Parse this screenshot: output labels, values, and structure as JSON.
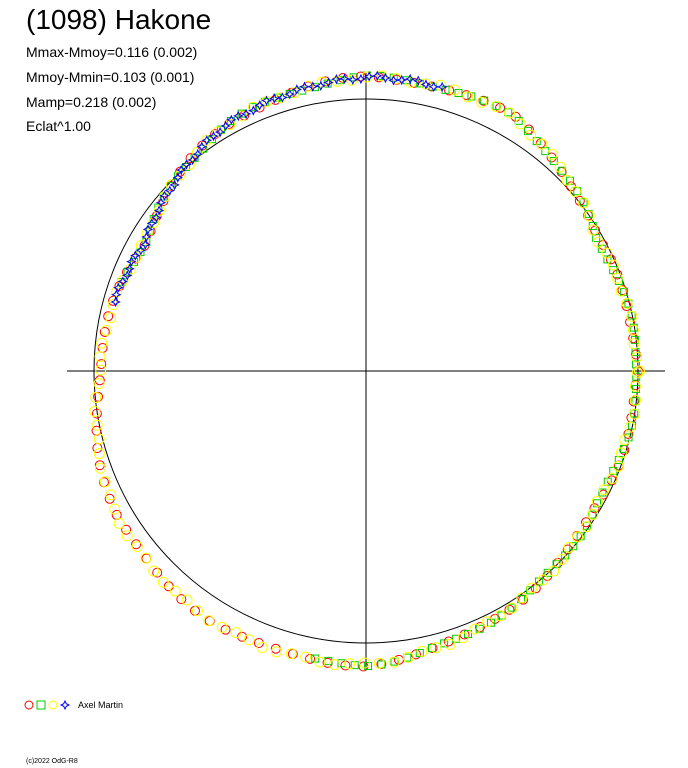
{
  "title": "(1098) Hakone",
  "stats": [
    "Mmax-Mmoy=0.116 (0.002)",
    "Mmoy-Mmin=0.103 (0.001)",
    "Mamp=0.218 (0.002)",
    "Eclat^1.00"
  ],
  "legend": {
    "label": "Axel Martin",
    "symbol_colors": [
      "#ff0000",
      "#00cc00",
      "#ffff00",
      "#0000ff"
    ]
  },
  "copyright": "(c)2022 OdG-R8",
  "colors": {
    "axes": "#000000",
    "reference_circle": "#000000"
  },
  "chart_data": {
    "type": "polar",
    "radius_profile_deg": [
      0,
      30,
      60,
      90,
      120,
      150,
      180,
      210,
      240,
      270,
      300,
      330,
      360
    ],
    "radius_profile_rel": [
      1.0,
      0.98,
      1.08,
      1.08,
      1.04,
      0.94,
      0.98,
      1.06,
      1.08,
      1.08,
      1.02,
      0.98,
      1.0
    ],
    "series": [
      {
        "name": "",
        "marker": "circle",
        "color": "#ff0000",
        "from_deg": 0,
        "to_deg": 360,
        "step_deg": 3.5
      },
      {
        "name": "",
        "marker": "square",
        "color": "#00cc00",
        "from_deg": -100,
        "to_deg": 160,
        "step_deg": 2.6
      },
      {
        "name": "",
        "marker": "circle",
        "color": "#ffff00",
        "from_deg": 0,
        "to_deg": 360,
        "step_deg": 2.9
      },
      {
        "name": "",
        "marker": "star",
        "color": "#0000ff",
        "from_deg": 75,
        "to_deg": 165,
        "step_deg": 1.6
      }
    ]
  }
}
